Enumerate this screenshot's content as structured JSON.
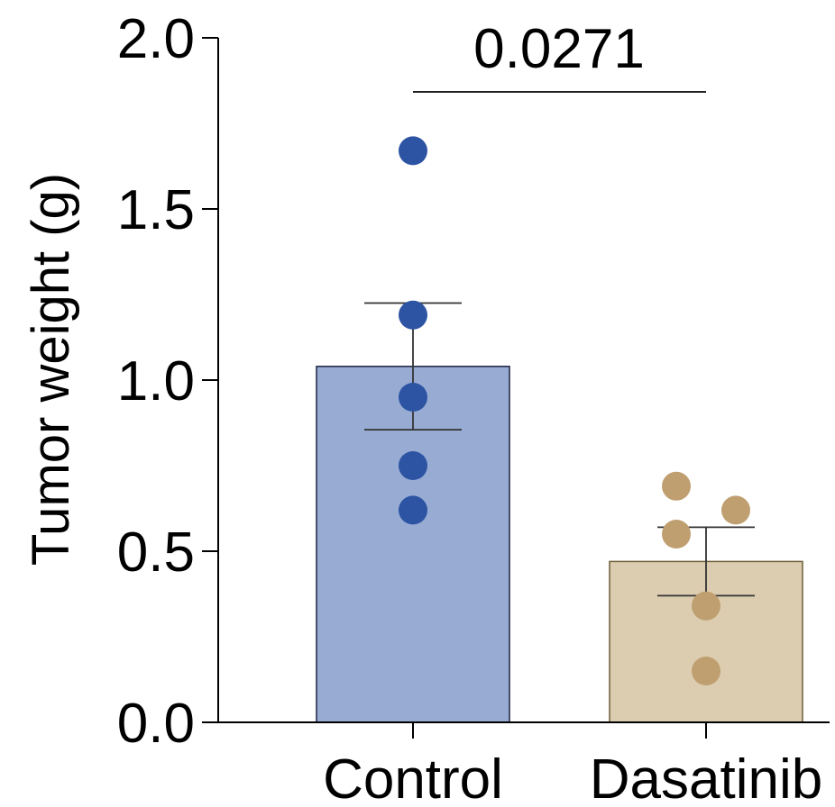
{
  "chart_data": {
    "type": "bar",
    "title": "",
    "xlabel": "",
    "ylabel": "Tumor weight (g)",
    "ylim": [
      0,
      2.0
    ],
    "yticks": [
      0.0,
      0.5,
      1.0,
      1.5,
      2.0
    ],
    "ytick_labels": [
      "0.0",
      "0.5",
      "1.0",
      "1.5",
      "2.0"
    ],
    "grid": false,
    "legend": "none",
    "categories": [
      "Control",
      "Dasatinib"
    ],
    "means": [
      1.04,
      0.47
    ],
    "sem": [
      0.185,
      0.1
    ],
    "points": [
      [
        1.67,
        1.19,
        0.95,
        0.75,
        0.62
      ],
      [
        0.69,
        0.62,
        0.55,
        0.34,
        0.15
      ]
    ],
    "bar_colors": [
      "#97abd3",
      "#dccdb0"
    ],
    "bar_edge_colors": [
      "#1c2440",
      "#6f5f3c"
    ],
    "point_colors": [
      "#2c54a3",
      "#bf9f70"
    ],
    "annotation": {
      "text": "0.0271",
      "between": [
        "Control",
        "Dasatinib"
      ]
    }
  }
}
